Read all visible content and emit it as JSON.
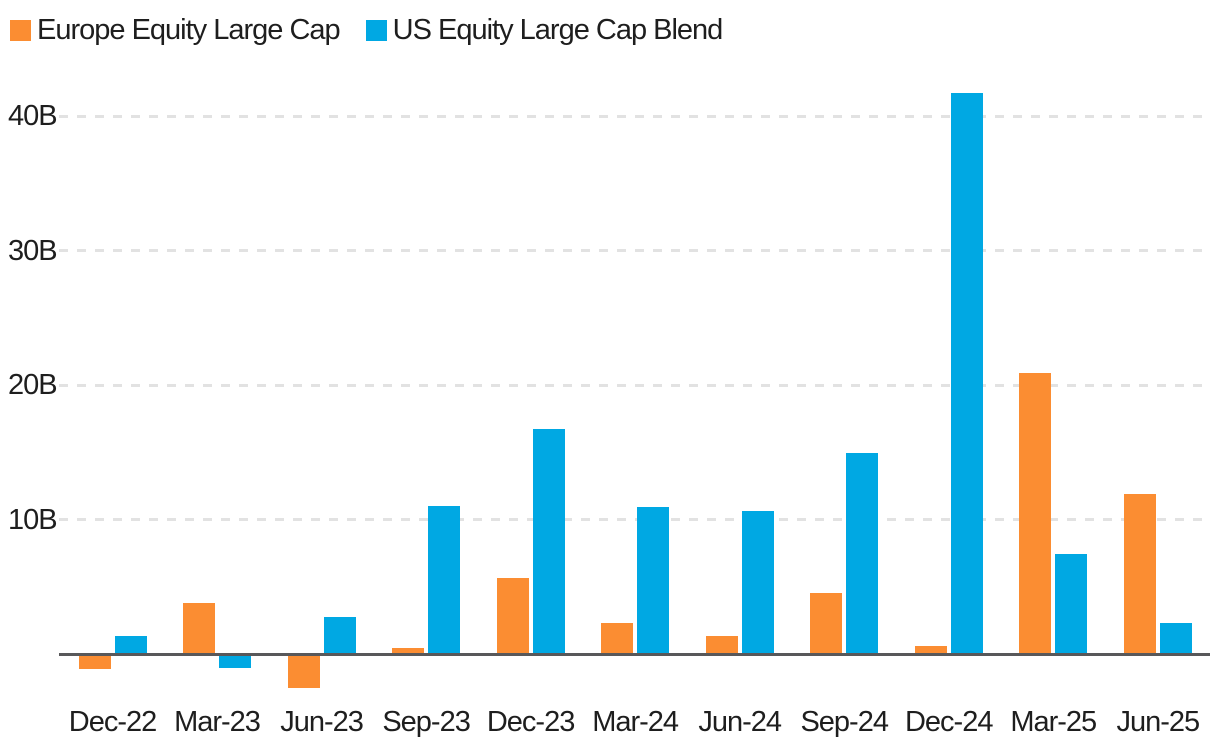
{
  "legend": {
    "items": [
      {
        "label": "Europe Equity Large Cap",
        "color": "#fb8d32",
        "swatch": "orange-square"
      },
      {
        "label": "US Equity Large Cap Blend",
        "color": "#00a8e3",
        "swatch": "blue-square"
      }
    ],
    "position": "top-left"
  },
  "colors": {
    "background": "#ffffff",
    "axis_line": "#58585a",
    "gridline": "#e2e2e2",
    "text": "#1e1e1e",
    "europe_series": "#fb8d32",
    "us_series": "#00a8e3"
  },
  "chart_data": {
    "type": "bar",
    "title": "",
    "xlabel": "",
    "ylabel": "",
    "unit": "B (billions)",
    "categories": [
      "Dec-22",
      "Mar-23",
      "Jun-23",
      "Sep-23",
      "Dec-23",
      "Mar-24",
      "Jun-24",
      "Sep-24",
      "Dec-24",
      "Mar-25",
      "Jun-25"
    ],
    "series": [
      {
        "name": "Europe Equity Large Cap",
        "color": "#fb8d32",
        "values": [
          -1.0,
          3.9,
          -2.4,
          0.5,
          5.7,
          2.4,
          1.4,
          4.6,
          0.7,
          21.0,
          12.0
        ]
      },
      {
        "name": "US Equity Large Cap Blend",
        "color": "#00a8e3",
        "values": [
          1.4,
          -0.9,
          2.8,
          11.1,
          16.8,
          11.0,
          10.7,
          15.0,
          41.8,
          7.5,
          2.4
        ]
      }
    ],
    "yticks": [
      {
        "value": 10,
        "label": "10B"
      },
      {
        "value": 20,
        "label": "20B"
      },
      {
        "value": 30,
        "label": "30B"
      },
      {
        "value": 40,
        "label": "40B"
      }
    ],
    "ylim": [
      -3,
      43
    ],
    "grid": "horizontal-dashed",
    "baseline": 0,
    "legend_position": "top-left"
  }
}
